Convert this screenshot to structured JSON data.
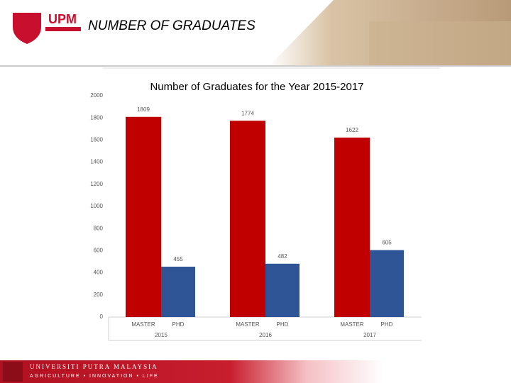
{
  "header": {
    "logo": "UPM",
    "title": "NUMBER OF GRADUATES"
  },
  "footer": {
    "name": "UNIVERSITI PUTRA MALAYSIA",
    "motto": "AGRICULTURE • INNOVATION • LIFE"
  },
  "chart_data": {
    "type": "bar",
    "title": "Number of Graduates for the Year 2015-2017",
    "categories": [
      "2015",
      "2016",
      "2017"
    ],
    "series": [
      {
        "name": "MASTER",
        "color": "#c00000",
        "values": [
          1809,
          1774,
          1622
        ]
      },
      {
        "name": "PHD",
        "color": "#2f5597",
        "values": [
          455,
          482,
          605
        ]
      }
    ],
    "ylim": [
      0,
      2000
    ],
    "yticks": [
      0,
      200,
      400,
      600,
      800,
      1000,
      1200,
      1400,
      1600,
      1800,
      2000
    ],
    "grid": false
  }
}
